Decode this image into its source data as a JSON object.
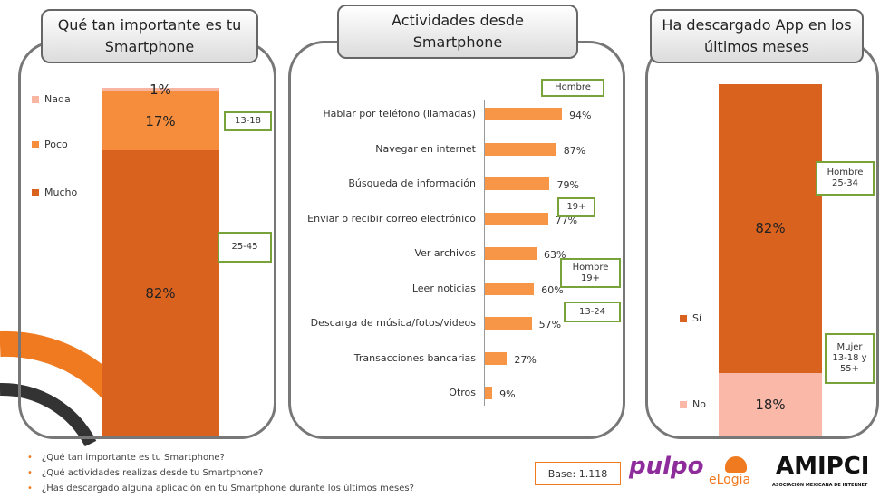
{
  "chart_data": [
    {
      "type": "stacked_bar",
      "title": "Qué tan importante es tu Smartphone",
      "series": [
        {
          "name": "Nada",
          "color": "#f8b6a2",
          "values": [
            1
          ],
          "value_labels": [
            "1%"
          ]
        },
        {
          "name": "Poco",
          "color": "#f58d3d",
          "values": [
            17
          ],
          "value_labels": [
            "17%"
          ]
        },
        {
          "name": "Mucho",
          "color": "#d9621f",
          "values": [
            82
          ],
          "value_labels": [
            "82%"
          ]
        }
      ],
      "annotations": [
        "13-18",
        "25-45"
      ]
    },
    {
      "type": "hbar",
      "title": "Actividades desde Smartphone",
      "categories": [
        "Hablar por teléfono (llamadas)",
        "Navegar en internet",
        "Búsqueda de información",
        "Enviar o recibir correo electrónico",
        "Ver archivos",
        "Leer noticias",
        "Descarga de música/fotos/videos",
        "Transacciones bancarias",
        "Otros"
      ],
      "values": [
        94,
        87,
        79,
        77,
        63,
        60,
        57,
        27,
        9
      ],
      "value_labels": [
        "94%",
        "87%",
        "79%",
        "77%",
        "63%",
        "60%",
        "57%",
        "27%",
        "9%"
      ],
      "color": "#f79646",
      "annotations": [
        "Hombre",
        "19+",
        "Hombre 19+",
        "13-24"
      ]
    },
    {
      "type": "stacked_bar",
      "title": "Ha descargado App en los últimos meses",
      "series": [
        {
          "name": "Sí",
          "color": "#d9621f",
          "values": [
            82
          ],
          "value_labels": [
            "82%"
          ]
        },
        {
          "name": "No",
          "color": "#f9b8a8",
          "values": [
            18
          ],
          "value_labels": [
            "18%"
          ]
        }
      ],
      "annotations": [
        "Hombre 25-34",
        "Mujer 13-18 y 55+"
      ]
    }
  ],
  "footer": {
    "questions": [
      "¿Qué tan importante es tu Smartphone?",
      "¿Qué actividades realizas desde tu Smartphone?",
      "¿Has descargado alguna aplicación en tu Smartphone durante los últimos meses?"
    ],
    "base": "Base: 1.118",
    "logos": [
      "pulpo",
      "eLogia",
      "AMIPCI",
      "ASOCIACIÓN MEXICANA DE INTERNET"
    ]
  }
}
